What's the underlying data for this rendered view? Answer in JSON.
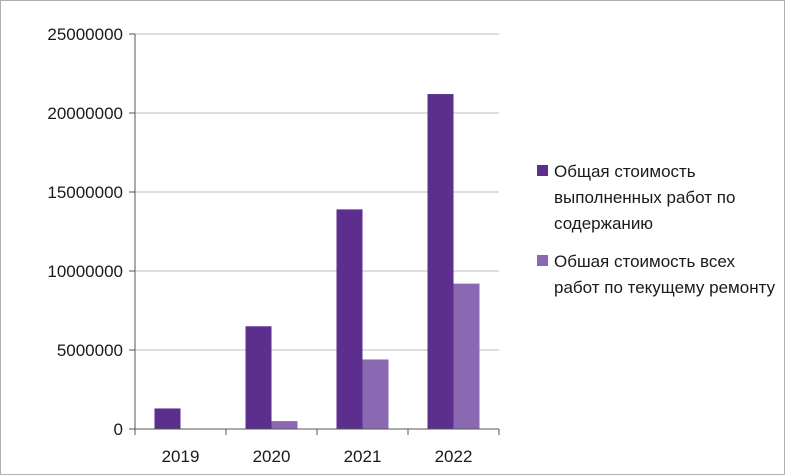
{
  "chart_data": {
    "type": "bar",
    "categories": [
      "2019",
      "2020",
      "2021",
      "2022"
    ],
    "series": [
      {
        "name": "Общая стоимость выполненных работ по содержанию",
        "color": "#5c2f8e",
        "values": [
          1300000,
          6500000,
          13900000,
          21200000
        ]
      },
      {
        "name": "Обшая стоимость всех работ по текущему ремонту",
        "color": "#8a68b2",
        "values": [
          0,
          500000,
          4400000,
          9200000
        ]
      }
    ],
    "yticks": [
      "0",
      "5000000",
      "10000000",
      "15000000",
      "20000000",
      "25000000"
    ],
    "ylim": [
      0,
      25000000
    ],
    "grid": true,
    "legend_position": "right"
  }
}
